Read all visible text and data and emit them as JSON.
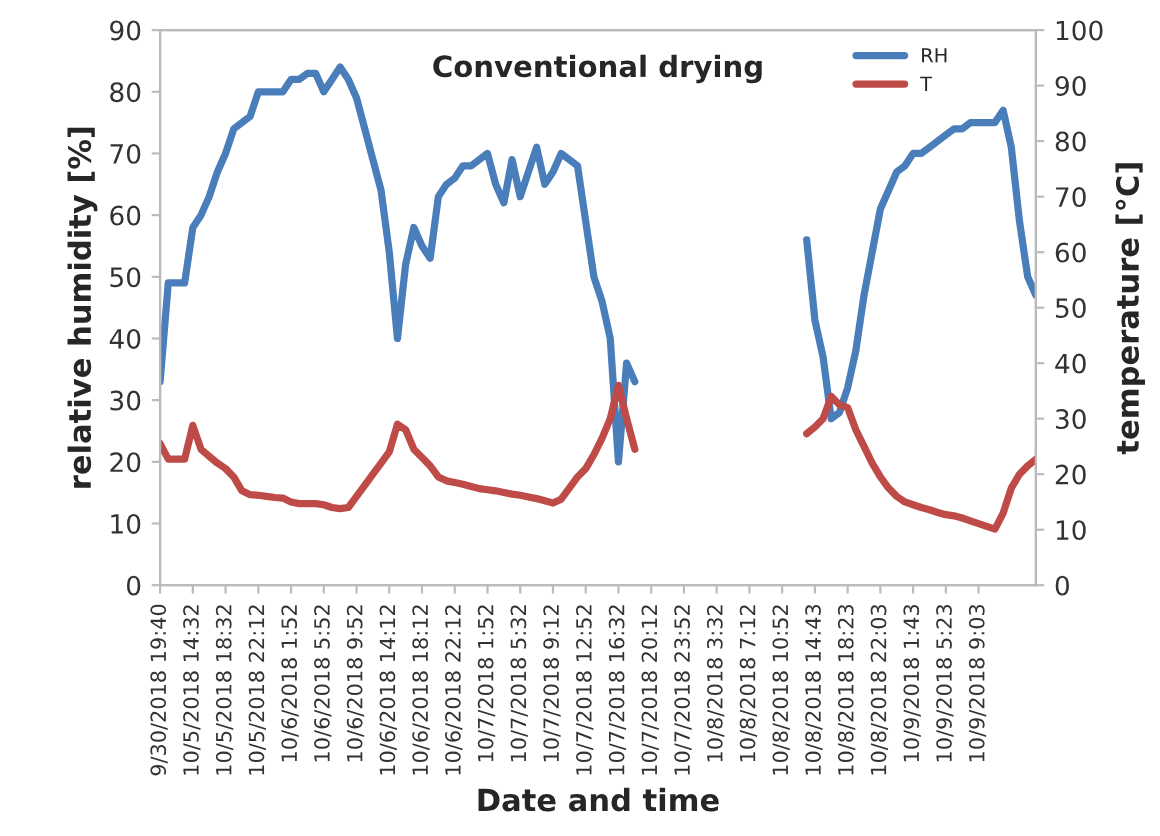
{
  "chart_data": {
    "type": "line",
    "title": "Conventional drying",
    "xlabel": "Date and time",
    "ylabel": "relative humidity [%]",
    "y2label": "temperature [°C]",
    "categories": [
      "9/30/2018 19:40",
      null,
      null,
      null,
      "10/5/2018 14:32",
      null,
      null,
      null,
      "10/5/2018 18:32",
      null,
      null,
      null,
      "10/5/2018 22:12",
      null,
      null,
      null,
      "10/6/2018 1:52",
      null,
      null,
      null,
      "10/6/2018 5:52",
      null,
      null,
      null,
      "10/6/2018 9:52",
      null,
      null,
      null,
      "10/6/2018 14:12",
      null,
      null,
      null,
      "10/6/2018 18:12",
      null,
      null,
      null,
      "10/6/2018 22:12",
      null,
      null,
      null,
      "10/7/2018 1:52",
      null,
      null,
      null,
      "10/7/2018 5:32",
      null,
      null,
      null,
      "10/7/2018 9:12",
      null,
      null,
      null,
      "10/7/2018 12:52",
      null,
      null,
      null,
      "10/7/2018 16:32",
      null,
      null,
      null,
      "10/7/2018 20:12",
      null,
      null,
      null,
      "10/7/2018 23:52",
      null,
      null,
      null,
      "10/8/2018 3:32",
      null,
      null,
      null,
      "10/8/2018 7:12",
      null,
      null,
      null,
      "10/8/2018 10:52",
      null,
      null,
      null,
      "10/8/2018 14:43",
      null,
      null,
      null,
      "10/8/2018 18:23",
      null,
      null,
      null,
      "10/8/2018 22:03",
      null,
      null,
      null,
      "10/9/2018 1:43",
      null,
      null,
      null,
      "10/9/2018 5:23",
      null,
      null,
      null,
      "10/9/2018 9:03",
      null,
      null,
      null,
      null,
      null,
      null,
      null
    ],
    "ylim": [
      0,
      90
    ],
    "yticks": [
      0,
      10,
      20,
      30,
      40,
      50,
      60,
      70,
      80,
      90
    ],
    "y2lim": [
      0,
      100
    ],
    "y2ticks": [
      0,
      10,
      20,
      30,
      40,
      50,
      60,
      70,
      80,
      90,
      100
    ],
    "grid": false,
    "legend": "top right",
    "marker": "none",
    "line_style": "solid",
    "series": [
      {
        "name": "RH",
        "color": "#4a7ebb",
        "values": [
          33,
          49,
          49,
          49,
          58,
          60,
          63,
          67,
          70,
          74,
          75,
          76,
          80,
          80,
          80,
          80,
          82,
          82,
          83,
          83,
          80,
          82,
          84,
          82,
          79,
          74,
          69,
          64,
          54,
          40,
          52,
          58,
          55,
          53,
          63,
          65,
          66,
          68,
          68,
          69,
          70,
          65,
          62,
          69,
          63,
          67,
          71,
          65,
          67,
          70,
          69,
          68,
          59,
          50,
          46,
          40,
          20,
          36,
          33,
          null,
          null,
          null,
          null,
          null,
          null,
          null,
          null,
          null,
          null,
          null,
          null,
          null,
          null,
          null,
          null,
          null,
          null,
          null,
          null,
          56,
          43,
          37,
          27,
          28,
          32,
          38,
          47,
          54,
          61,
          64,
          67,
          68,
          70,
          70,
          71,
          72,
          73,
          74,
          74,
          75,
          75,
          75,
          75,
          77,
          71,
          59,
          50,
          47
        ]
      },
      {
        "name": "T",
        "color": "#be4b48",
        "axis": "y2",
        "values": [
          25.5,
          22.7,
          22.7,
          22.7,
          28.8,
          24.5,
          23.2,
          22,
          21,
          19.5,
          17,
          16.3,
          16.2,
          16,
          15.8,
          15.7,
          15,
          14.7,
          14.7,
          14.7,
          14.5,
          14,
          13.8,
          14,
          16,
          18,
          20,
          22,
          24,
          29,
          28,
          24.5,
          23,
          21.5,
          19.5,
          18.8,
          18.5,
          18.2,
          17.8,
          17.4,
          17.2,
          17,
          16.7,
          16.4,
          16.2,
          15.9,
          15.6,
          15.2,
          14.8,
          15.5,
          17.5,
          19.5,
          21,
          23.5,
          26.5,
          30,
          36,
          30,
          24.5,
          null,
          null,
          null,
          null,
          null,
          null,
          null,
          null,
          null,
          null,
          null,
          null,
          null,
          null,
          null,
          null,
          null,
          null,
          null,
          null,
          27.3,
          28.5,
          30,
          34,
          32.5,
          32,
          28,
          25,
          22,
          19.5,
          17.5,
          16,
          15,
          14.5,
          14,
          13.6,
          13.1,
          12.7,
          12.5,
          12.1,
          11.6,
          11.1,
          10.6,
          10.1,
          13,
          17.5,
          20,
          21.5,
          22.7
        ]
      }
    ]
  }
}
